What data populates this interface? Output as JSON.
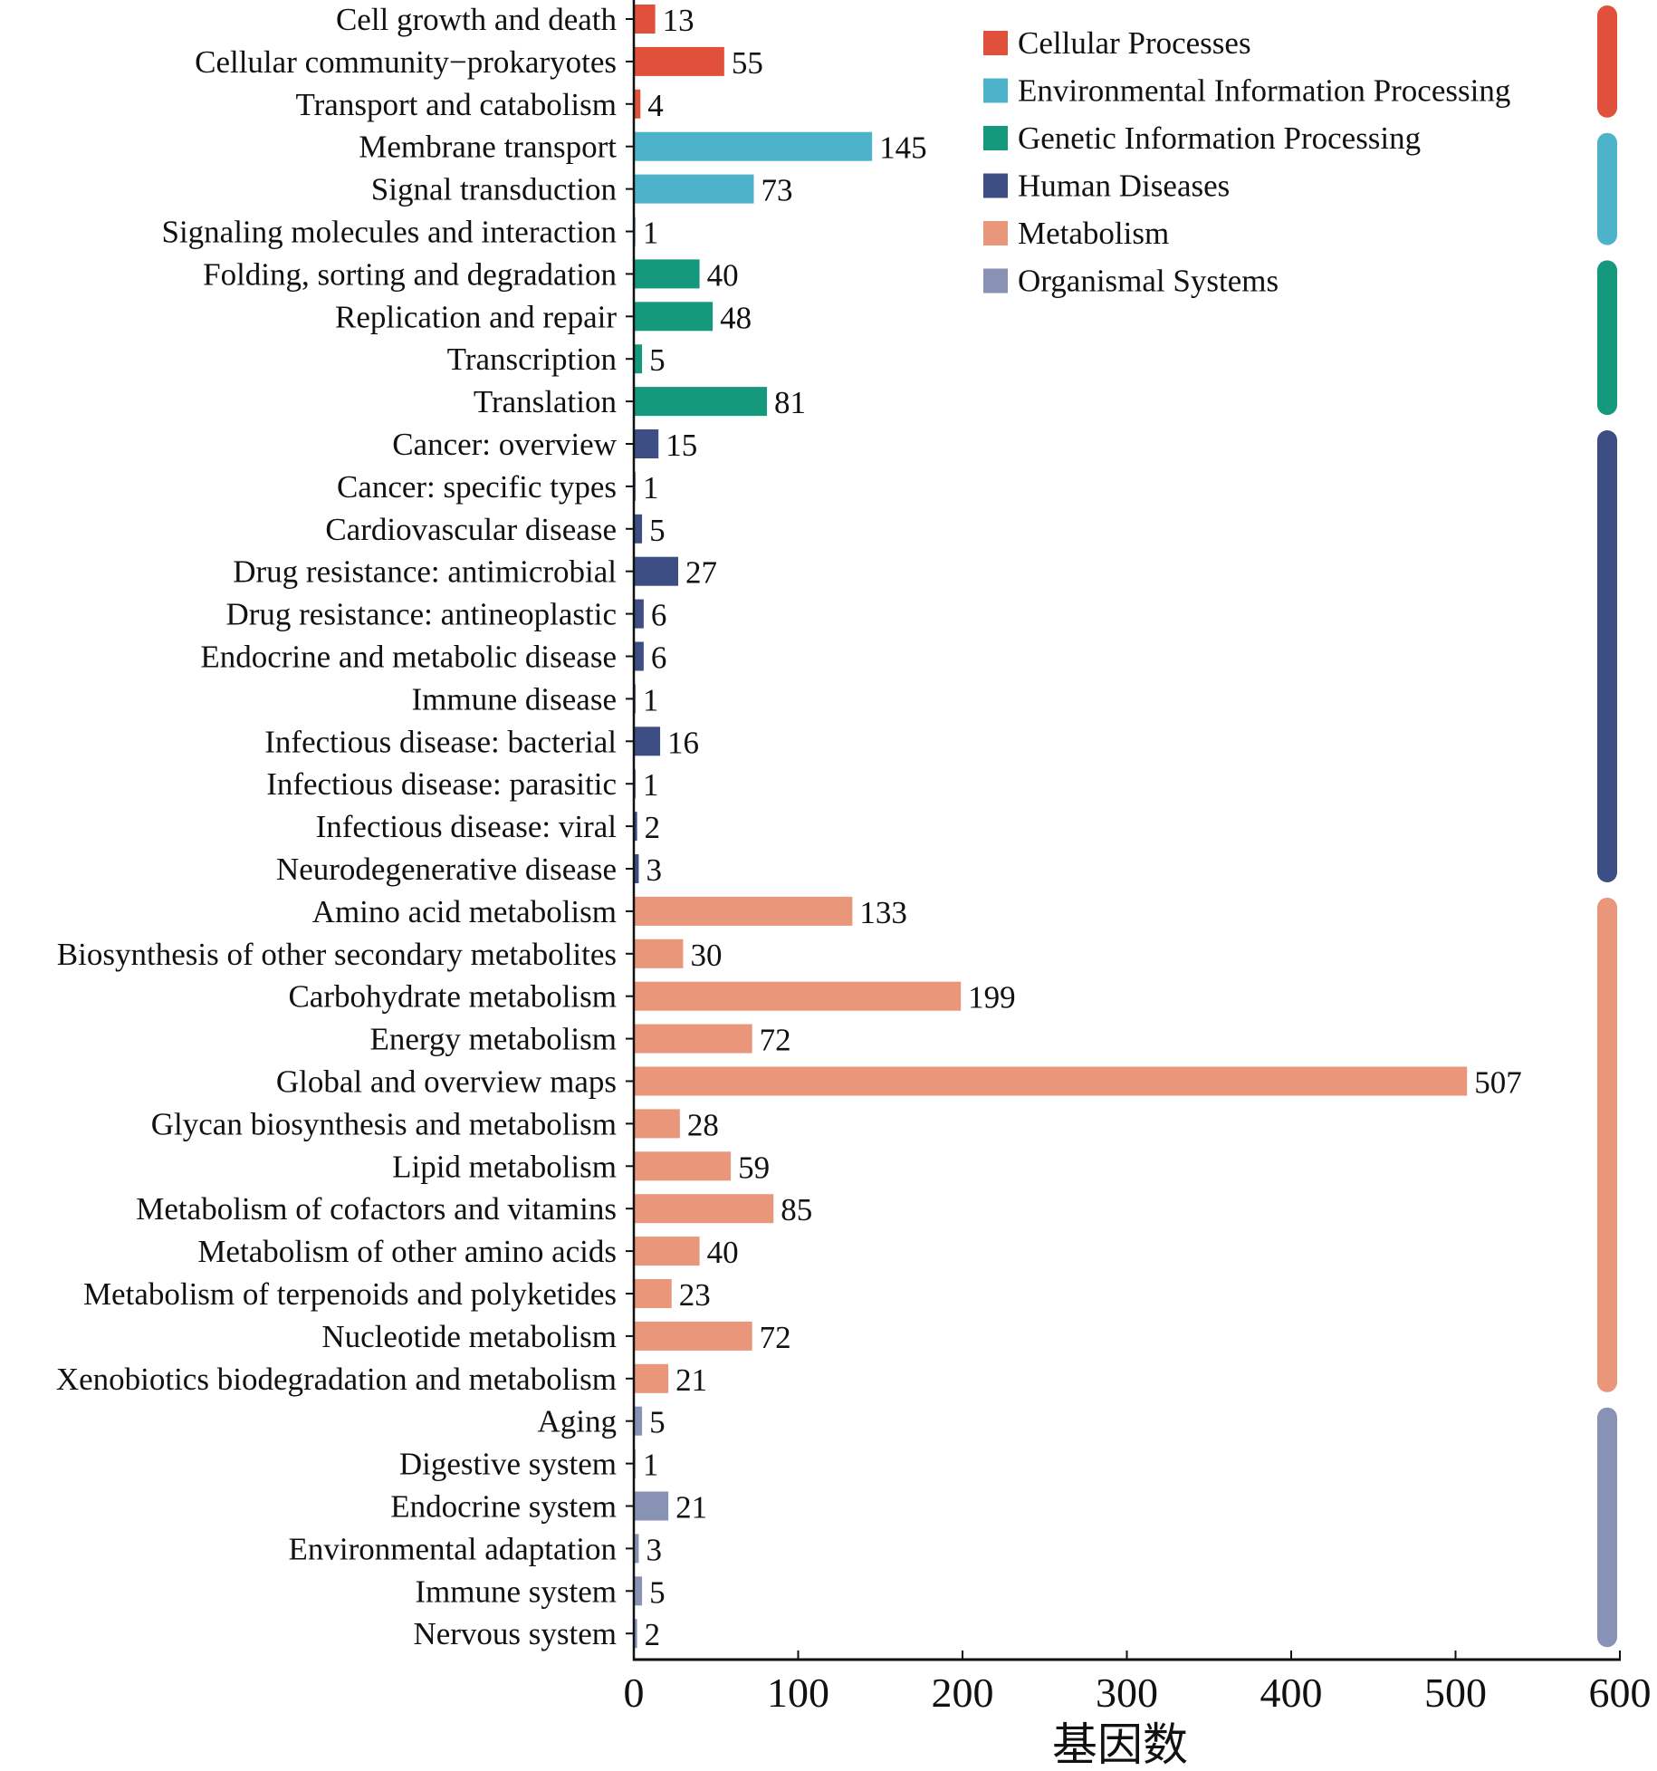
{
  "chart_data": {
    "type": "bar",
    "orientation": "horizontal",
    "title": "",
    "xlabel": "基因数",
    "ylabel": "",
    "xlim": [
      0,
      600
    ],
    "xticks": [
      0,
      100,
      200,
      300,
      400,
      500,
      600
    ],
    "grid": false,
    "legend_position": "top-right",
    "groups": [
      {
        "name": "Cellular Processes",
        "color": "#E0503A"
      },
      {
        "name": "Environmental Information Processing",
        "color": "#4DB3CA"
      },
      {
        "name": "Genetic Information Processing",
        "color": "#15997C"
      },
      {
        "name": "Human Diseases",
        "color": "#3C4E84"
      },
      {
        "name": "Metabolism",
        "color": "#E9967A"
      },
      {
        "name": "Organismal Systems",
        "color": "#8892B5"
      }
    ],
    "bars": [
      {
        "label": "Cell growth and death",
        "value": 13,
        "group": 0
      },
      {
        "label": "Cellular community−prokaryotes",
        "value": 55,
        "group": 0
      },
      {
        "label": "Transport and catabolism",
        "value": 4,
        "group": 0
      },
      {
        "label": "Membrane transport",
        "value": 145,
        "group": 1
      },
      {
        "label": "Signal transduction",
        "value": 73,
        "group": 1
      },
      {
        "label": "Signaling molecules and interaction",
        "value": 1,
        "group": 1
      },
      {
        "label": "Folding, sorting and degradation",
        "value": 40,
        "group": 2
      },
      {
        "label": "Replication and repair",
        "value": 48,
        "group": 2
      },
      {
        "label": "Transcription",
        "value": 5,
        "group": 2
      },
      {
        "label": "Translation",
        "value": 81,
        "group": 2
      },
      {
        "label": "Cancer: overview",
        "value": 15,
        "group": 3
      },
      {
        "label": "Cancer: specific types",
        "value": 1,
        "group": 3
      },
      {
        "label": "Cardiovascular disease",
        "value": 5,
        "group": 3
      },
      {
        "label": "Drug resistance: antimicrobial",
        "value": 27,
        "group": 3
      },
      {
        "label": "Drug resistance: antineoplastic",
        "value": 6,
        "group": 3
      },
      {
        "label": "Endocrine and metabolic disease",
        "value": 6,
        "group": 3
      },
      {
        "label": "Immune disease",
        "value": 1,
        "group": 3
      },
      {
        "label": "Infectious disease: bacterial",
        "value": 16,
        "group": 3
      },
      {
        "label": "Infectious disease: parasitic",
        "value": 1,
        "group": 3
      },
      {
        "label": "Infectious disease: viral",
        "value": 2,
        "group": 3
      },
      {
        "label": "Neurodegenerative disease",
        "value": 3,
        "group": 3
      },
      {
        "label": "Amino acid metabolism",
        "value": 133,
        "group": 4
      },
      {
        "label": "Biosynthesis of other secondary metabolites",
        "value": 30,
        "group": 4
      },
      {
        "label": "Carbohydrate metabolism",
        "value": 199,
        "group": 4
      },
      {
        "label": "Energy metabolism",
        "value": 72,
        "group": 4
      },
      {
        "label": "Global and overview maps",
        "value": 507,
        "group": 4
      },
      {
        "label": "Glycan biosynthesis and metabolism",
        "value": 28,
        "group": 4
      },
      {
        "label": "Lipid metabolism",
        "value": 59,
        "group": 4
      },
      {
        "label": "Metabolism of cofactors and vitamins",
        "value": 85,
        "group": 4
      },
      {
        "label": "Metabolism of other amino acids",
        "value": 40,
        "group": 4
      },
      {
        "label": "Metabolism of terpenoids and polyketides",
        "value": 23,
        "group": 4
      },
      {
        "label": "Nucleotide metabolism",
        "value": 72,
        "group": 4
      },
      {
        "label": "Xenobiotics biodegradation and metabolism",
        "value": 21,
        "group": 4
      },
      {
        "label": "Aging",
        "value": 5,
        "group": 5
      },
      {
        "label": "Digestive system",
        "value": 1,
        "group": 5
      },
      {
        "label": "Endocrine system",
        "value": 21,
        "group": 5
      },
      {
        "label": "Environmental adaptation",
        "value": 3,
        "group": 5
      },
      {
        "label": "Immune system",
        "value": 5,
        "group": 5
      },
      {
        "label": "Nervous system",
        "value": 2,
        "group": 5
      }
    ]
  }
}
